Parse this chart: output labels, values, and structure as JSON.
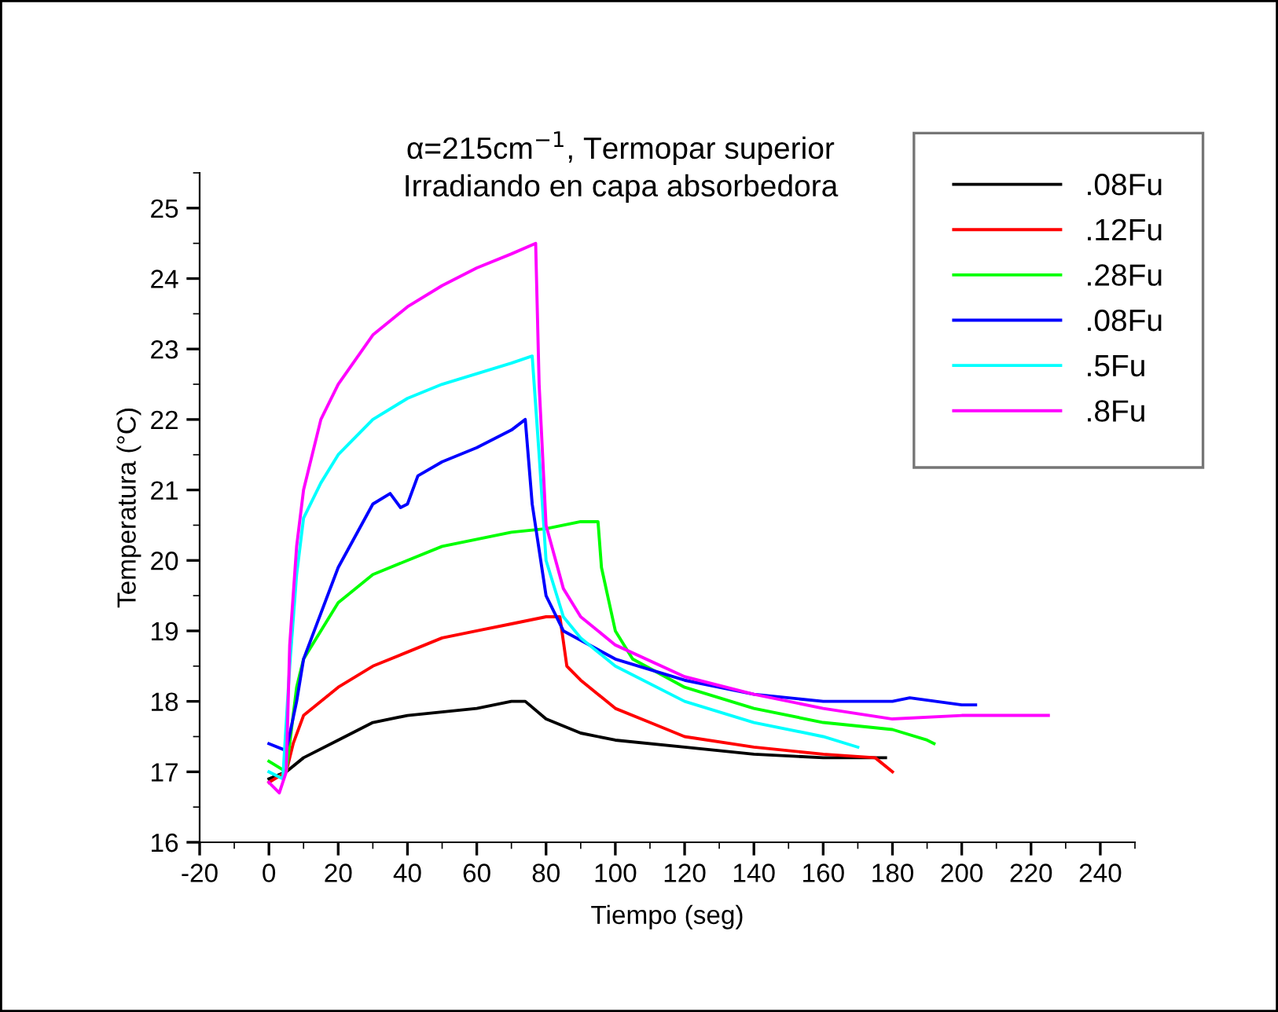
{
  "chart_data": {
    "type": "line",
    "title": "α=215cm$^{−1}$, Termopar superior\nIrradiando en capa absorbedora",
    "xlabel": "Tiempo (seg)",
    "ylabel": "Temperatura (°C)",
    "xlim": [
      -20,
      250
    ],
    "xticks": [
      -20,
      0,
      20,
      40,
      60,
      80,
      100,
      120,
      140,
      160,
      180,
      200,
      220,
      240
    ],
    "ylim": [
      16,
      25.5
    ],
    "yticks": [
      16,
      17,
      18,
      19,
      20,
      21,
      22,
      23,
      24,
      25
    ],
    "grid": false,
    "legend": "top right",
    "marker": "none",
    "line_style": "solid",
    "series": [
      {
        "name": ".08Fu",
        "color": "#000000",
        "x": [
          0,
          5,
          10,
          20,
          30,
          40,
          50,
          60,
          70,
          74,
          80,
          90,
          100,
          120,
          140,
          160,
          178
        ],
        "values": [
          16.9,
          17.0,
          17.2,
          17.45,
          17.7,
          17.8,
          17.85,
          17.9,
          18.0,
          18.0,
          17.75,
          17.55,
          17.45,
          17.35,
          17.25,
          17.2,
          17.2
        ]
      },
      {
        "name": ".12Fu",
        "color": "#ff0000",
        "x": [
          0,
          5,
          7,
          10,
          20,
          30,
          40,
          50,
          60,
          70,
          80,
          84,
          86,
          90,
          100,
          110,
          120,
          140,
          160,
          175,
          180
        ],
        "values": [
          16.85,
          17.0,
          17.4,
          17.8,
          18.2,
          18.5,
          18.7,
          18.9,
          19.0,
          19.1,
          19.2,
          19.2,
          18.5,
          18.3,
          17.9,
          17.7,
          17.5,
          17.35,
          17.25,
          17.2,
          17.0
        ]
      },
      {
        "name": ".28Fu",
        "color": "#00ff00",
        "x": [
          0,
          5,
          8,
          10,
          20,
          30,
          40,
          50,
          60,
          70,
          80,
          90,
          95,
          96,
          100,
          105,
          120,
          140,
          160,
          180,
          190,
          192
        ],
        "values": [
          17.15,
          17.0,
          18.2,
          18.6,
          19.4,
          19.8,
          20.0,
          20.2,
          20.3,
          20.4,
          20.45,
          20.55,
          20.55,
          19.9,
          19.0,
          18.6,
          18.2,
          17.9,
          17.7,
          17.6,
          17.45,
          17.4
        ]
      },
      {
        "name": ".08Fu",
        "color": "#0000ff",
        "x": [
          0,
          5,
          8,
          10,
          20,
          30,
          35,
          38,
          40,
          43,
          50,
          60,
          70,
          74,
          76,
          80,
          85,
          100,
          120,
          140,
          160,
          180,
          185,
          200,
          204
        ],
        "values": [
          17.4,
          17.3,
          18.0,
          18.6,
          19.9,
          20.8,
          20.95,
          20.75,
          20.8,
          21.2,
          21.4,
          21.6,
          21.85,
          22.0,
          20.8,
          19.5,
          19.0,
          18.6,
          18.3,
          18.1,
          18.0,
          18.0,
          18.05,
          17.95,
          17.95
        ]
      },
      {
        "name": ".5Fu",
        "color": "#00ffff",
        "x": [
          0,
          4,
          6,
          8,
          10,
          15,
          20,
          30,
          40,
          50,
          60,
          70,
          76,
          78,
          80,
          85,
          90,
          100,
          120,
          140,
          160,
          170
        ],
        "values": [
          17.0,
          16.9,
          18.5,
          19.8,
          20.6,
          21.1,
          21.5,
          22.0,
          22.3,
          22.5,
          22.65,
          22.8,
          22.9,
          21.5,
          20.0,
          19.2,
          18.9,
          18.5,
          18.0,
          17.7,
          17.5,
          17.35
        ]
      },
      {
        "name": ".8Fu",
        "color": "#ff00ff",
        "x": [
          0,
          3,
          5,
          6,
          8,
          10,
          15,
          20,
          30,
          40,
          50,
          60,
          70,
          77,
          78,
          80,
          85,
          90,
          100,
          120,
          140,
          160,
          180,
          200,
          225
        ],
        "values": [
          16.85,
          16.7,
          17.0,
          18.8,
          20.2,
          21.0,
          22.0,
          22.5,
          23.2,
          23.6,
          23.9,
          24.15,
          24.35,
          24.5,
          22.5,
          20.5,
          19.6,
          19.2,
          18.8,
          18.35,
          18.1,
          17.9,
          17.75,
          17.8,
          17.8
        ]
      }
    ]
  }
}
